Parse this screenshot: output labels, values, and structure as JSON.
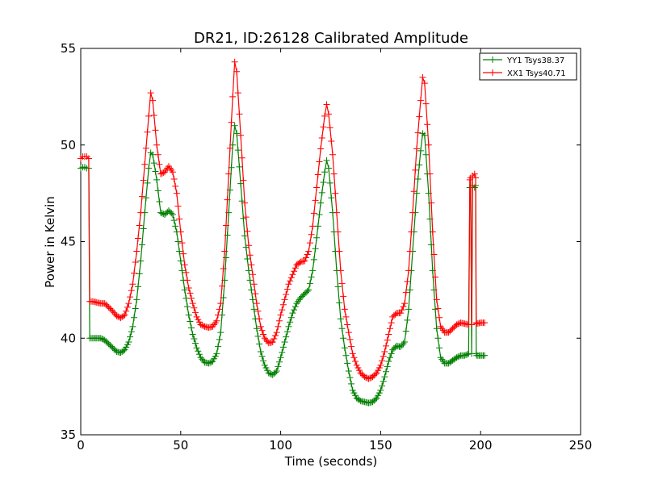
{
  "chart_data": {
    "type": "line",
    "title": "DR21, ID:26128 Calibrated Amplitude",
    "xlabel": "Time (seconds)",
    "ylabel": "Power in Kelvin",
    "xlim": [
      0,
      250
    ],
    "ylim": [
      35,
      55
    ],
    "xticks": [
      0,
      50,
      100,
      150,
      200,
      250
    ],
    "yticks": [
      35,
      40,
      45,
      50,
      55
    ],
    "grid": false,
    "legend_position": "top-right",
    "marker": "+",
    "series": [
      {
        "name": "YY1 Tsys38.37",
        "color": "#008000",
        "points": [
          [
            0,
            48.8
          ],
          [
            1,
            48.85
          ],
          [
            2,
            48.85
          ],
          [
            3,
            48.8
          ],
          [
            4,
            48.8
          ],
          [
            4.5,
            40.0
          ],
          [
            6,
            40.0
          ],
          [
            8,
            40.0
          ],
          [
            10,
            40.0
          ],
          [
            12,
            39.9
          ],
          [
            14,
            39.7
          ],
          [
            16,
            39.5
          ],
          [
            18,
            39.3
          ],
          [
            20,
            39.25
          ],
          [
            22,
            39.4
          ],
          [
            24,
            39.8
          ],
          [
            26,
            40.6
          ],
          [
            28,
            42.0
          ],
          [
            30,
            44.0
          ],
          [
            32,
            46.5
          ],
          [
            34,
            48.8
          ],
          [
            35,
            49.6
          ],
          [
            36,
            49.5
          ],
          [
            38,
            48.2
          ],
          [
            40,
            46.5
          ],
          [
            42,
            46.4
          ],
          [
            44,
            46.6
          ],
          [
            46,
            46.4
          ],
          [
            48,
            45.5
          ],
          [
            50,
            44.0
          ],
          [
            52,
            42.5
          ],
          [
            54,
            41.2
          ],
          [
            56,
            40.2
          ],
          [
            58,
            39.5
          ],
          [
            60,
            39.0
          ],
          [
            62,
            38.75
          ],
          [
            64,
            38.7
          ],
          [
            66,
            38.8
          ],
          [
            68,
            39.2
          ],
          [
            70,
            40.3
          ],
          [
            72,
            43.0
          ],
          [
            74,
            46.5
          ],
          [
            76,
            50.0
          ],
          [
            77,
            51.0
          ],
          [
            78,
            50.6
          ],
          [
            80,
            48.0
          ],
          [
            82,
            45.3
          ],
          [
            84,
            43.5
          ],
          [
            86,
            42.0
          ],
          [
            88,
            40.5
          ],
          [
            90,
            39.3
          ],
          [
            92,
            38.6
          ],
          [
            94,
            38.2
          ],
          [
            96,
            38.1
          ],
          [
            98,
            38.3
          ],
          [
            100,
            39.0
          ],
          [
            102,
            39.8
          ],
          [
            104,
            40.6
          ],
          [
            106,
            41.3
          ],
          [
            108,
            41.8
          ],
          [
            110,
            42.1
          ],
          [
            112,
            42.3
          ],
          [
            114,
            42.5
          ],
          [
            116,
            43.5
          ],
          [
            118,
            45.2
          ],
          [
            120,
            47.0
          ],
          [
            122,
            48.6
          ],
          [
            123,
            49.2
          ],
          [
            124,
            48.8
          ],
          [
            126,
            46.5
          ],
          [
            128,
            43.5
          ],
          [
            130,
            41.0
          ],
          [
            132,
            39.5
          ],
          [
            134,
            38.3
          ],
          [
            136,
            37.3
          ],
          [
            138,
            36.9
          ],
          [
            140,
            36.75
          ],
          [
            142,
            36.7
          ],
          [
            144,
            36.65
          ],
          [
            146,
            36.7
          ],
          [
            148,
            36.9
          ],
          [
            150,
            37.3
          ],
          [
            152,
            38.0
          ],
          [
            154,
            38.8
          ],
          [
            156,
            39.4
          ],
          [
            158,
            39.6
          ],
          [
            160,
            39.55
          ],
          [
            162,
            39.8
          ],
          [
            164,
            41.5
          ],
          [
            166,
            44.5
          ],
          [
            168,
            47.5
          ],
          [
            170,
            49.7
          ],
          [
            171,
            50.6
          ],
          [
            172,
            50.5
          ],
          [
            174,
            47.5
          ],
          [
            176,
            43.5
          ],
          [
            178,
            40.5
          ],
          [
            180,
            39.0
          ],
          [
            182,
            38.7
          ],
          [
            184,
            38.7
          ],
          [
            186,
            38.85
          ],
          [
            188,
            39.0
          ],
          [
            190,
            39.1
          ],
          [
            192,
            39.1
          ],
          [
            194,
            39.2
          ],
          [
            194.6,
            47.8
          ],
          [
            195,
            47.8
          ],
          [
            195.5,
            39.2
          ],
          [
            196,
            47.9
          ],
          [
            197,
            47.8
          ],
          [
            197.5,
            47.9
          ],
          [
            197.8,
            39.2
          ],
          [
            198,
            39.1
          ],
          [
            200,
            39.1
          ],
          [
            202,
            39.1
          ]
        ]
      },
      {
        "name": "XX1 Tsys40.71",
        "color": "#ff0000",
        "points": [
          [
            0,
            49.3
          ],
          [
            1,
            49.4
          ],
          [
            2,
            49.4
          ],
          [
            3,
            49.4
          ],
          [
            4,
            49.3
          ],
          [
            4.5,
            41.9
          ],
          [
            6,
            41.9
          ],
          [
            8,
            41.85
          ],
          [
            10,
            41.8
          ],
          [
            12,
            41.8
          ],
          [
            14,
            41.6
          ],
          [
            16,
            41.4
          ],
          [
            18,
            41.15
          ],
          [
            20,
            41.05
          ],
          [
            22,
            41.2
          ],
          [
            24,
            41.8
          ],
          [
            26,
            42.8
          ],
          [
            28,
            44.5
          ],
          [
            30,
            46.5
          ],
          [
            32,
            49.0
          ],
          [
            34,
            51.5
          ],
          [
            35,
            52.7
          ],
          [
            36,
            52.3
          ],
          [
            38,
            50.0
          ],
          [
            40,
            48.5
          ],
          [
            42,
            48.6
          ],
          [
            44,
            48.9
          ],
          [
            46,
            48.6
          ],
          [
            48,
            47.5
          ],
          [
            50,
            45.5
          ],
          [
            52,
            43.8
          ],
          [
            54,
            42.6
          ],
          [
            56,
            41.8
          ],
          [
            58,
            41.1
          ],
          [
            60,
            40.7
          ],
          [
            62,
            40.6
          ],
          [
            64,
            40.55
          ],
          [
            66,
            40.6
          ],
          [
            68,
            40.9
          ],
          [
            70,
            41.8
          ],
          [
            72,
            44.5
          ],
          [
            74,
            48.5
          ],
          [
            76,
            52.5
          ],
          [
            77,
            54.3
          ],
          [
            78,
            53.8
          ],
          [
            80,
            50.5
          ],
          [
            82,
            47.0
          ],
          [
            84,
            44.8
          ],
          [
            86,
            43.3
          ],
          [
            88,
            41.8
          ],
          [
            90,
            40.6
          ],
          [
            92,
            40.0
          ],
          [
            94,
            39.75
          ],
          [
            96,
            39.8
          ],
          [
            98,
            40.3
          ],
          [
            100,
            41.2
          ],
          [
            102,
            42.0
          ],
          [
            104,
            42.8
          ],
          [
            106,
            43.3
          ],
          [
            108,
            43.8
          ],
          [
            110,
            43.95
          ],
          [
            112,
            44.0
          ],
          [
            114,
            44.5
          ],
          [
            116,
            45.8
          ],
          [
            118,
            47.8
          ],
          [
            120,
            49.8
          ],
          [
            122,
            51.5
          ],
          [
            123,
            52.1
          ],
          [
            124,
            51.6
          ],
          [
            126,
            49.5
          ],
          [
            128,
            46.5
          ],
          [
            130,
            43.5
          ],
          [
            132,
            41.5
          ],
          [
            134,
            40.3
          ],
          [
            136,
            39.2
          ],
          [
            138,
            38.6
          ],
          [
            140,
            38.2
          ],
          [
            142,
            38.0
          ],
          [
            144,
            37.9
          ],
          [
            146,
            38.0
          ],
          [
            148,
            38.2
          ],
          [
            150,
            38.6
          ],
          [
            152,
            39.3
          ],
          [
            154,
            40.2
          ],
          [
            156,
            41.1
          ],
          [
            158,
            41.3
          ],
          [
            160,
            41.3
          ],
          [
            162,
            41.8
          ],
          [
            164,
            43.5
          ],
          [
            166,
            46.5
          ],
          [
            168,
            49.8
          ],
          [
            170,
            52.3
          ],
          [
            171,
            53.5
          ],
          [
            172,
            53.2
          ],
          [
            174,
            50.0
          ],
          [
            176,
            45.5
          ],
          [
            178,
            42.0
          ],
          [
            180,
            40.6
          ],
          [
            182,
            40.3
          ],
          [
            184,
            40.3
          ],
          [
            186,
            40.5
          ],
          [
            188,
            40.7
          ],
          [
            190,
            40.8
          ],
          [
            192,
            40.75
          ],
          [
            194,
            40.7
          ],
          [
            194.6,
            48.2
          ],
          [
            195,
            48.3
          ],
          [
            195.5,
            40.7
          ],
          [
            196,
            48.4
          ],
          [
            197,
            48.5
          ],
          [
            197.5,
            48.3
          ],
          [
            197.8,
            40.8
          ],
          [
            198,
            40.75
          ],
          [
            200,
            40.8
          ],
          [
            202,
            40.8
          ]
        ]
      }
    ]
  }
}
